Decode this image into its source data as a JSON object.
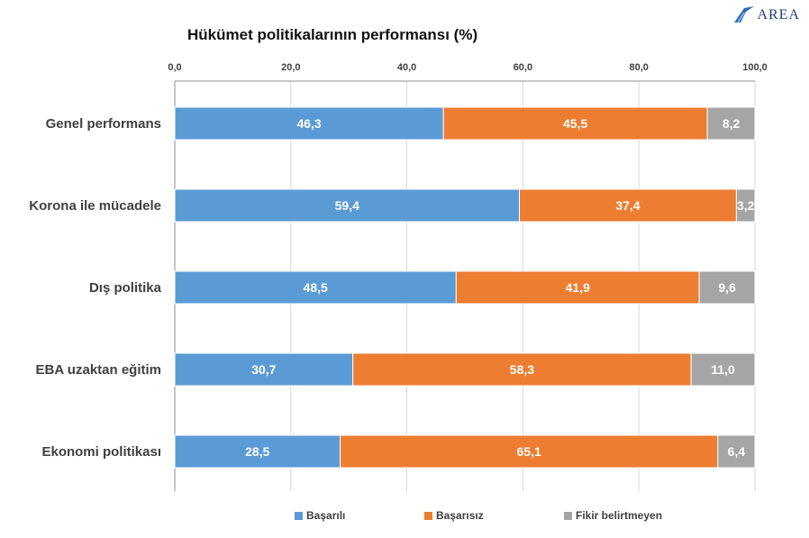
{
  "logo": {
    "text": "AREA"
  },
  "chart_data": {
    "type": "bar",
    "orientation": "horizontal",
    "stacked": true,
    "title": "Hükümet politikalarının performansı (%)",
    "categories": [
      "Genel performans",
      "Korona ile mücadele",
      "Dış politika",
      "EBA uzaktan eğitim",
      "Ekonomi politikası"
    ],
    "series": [
      {
        "name": "Başarılı",
        "color": "#5b9bd5",
        "values": [
          46.3,
          59.4,
          48.5,
          30.7,
          28.5
        ],
        "labels": [
          "46,3",
          "59,4",
          "48,5",
          "30,7",
          "28,5"
        ]
      },
      {
        "name": "Başarısız",
        "color": "#ed7d31",
        "values": [
          45.5,
          37.4,
          41.9,
          58.3,
          65.1
        ],
        "labels": [
          "45,5",
          "37,4",
          "41,9",
          "58,3",
          "65,1"
        ]
      },
      {
        "name": "Fikir belirtmeyen",
        "color": "#a5a5a5",
        "values": [
          8.2,
          3.2,
          9.6,
          11.0,
          6.4
        ],
        "labels": [
          "8,2",
          "3,2",
          "9,6",
          "11,0",
          "6,4"
        ]
      }
    ],
    "xlim": [
      0,
      100
    ],
    "ticks": [
      0,
      20,
      40,
      60,
      80,
      100
    ],
    "tick_labels": [
      "0,0",
      "20,0",
      "40,0",
      "60,0",
      "80,0",
      "100,0"
    ],
    "axis_position": "top",
    "grid": true,
    "legend_position": "bottom"
  }
}
